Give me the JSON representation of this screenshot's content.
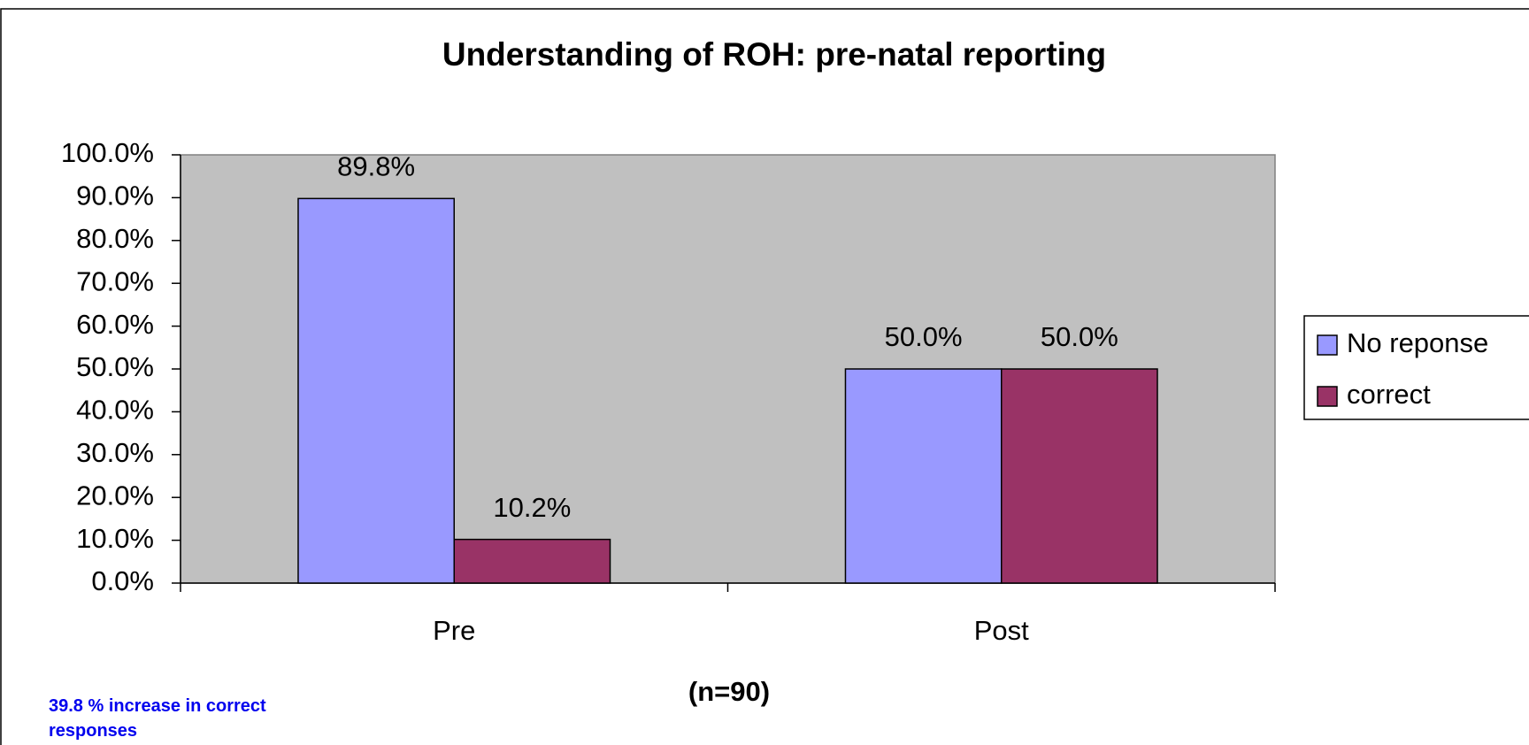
{
  "chart_data": {
    "type": "bar",
    "title": "Understanding of ROH: pre-natal reporting",
    "x_label": "(n=90)",
    "annotation": "39.8 % increase in correct responses",
    "categories": [
      "Pre",
      "Post"
    ],
    "series": [
      {
        "name": "No reponse",
        "color": "#9999ff",
        "values": [
          89.8,
          50.0
        ],
        "value_labels": [
          "89.8%",
          "50.0%"
        ]
      },
      {
        "name": "correct",
        "color": "#993366",
        "values": [
          10.2,
          50.0
        ],
        "value_labels": [
          "10.2%",
          "50.0%"
        ]
      }
    ],
    "ylim": [
      0,
      100
    ],
    "yticks": [
      {
        "value": 0,
        "label": "0.0%"
      },
      {
        "value": 10,
        "label": "10.0%"
      },
      {
        "value": 20,
        "label": "20.0%"
      },
      {
        "value": 30,
        "label": "30.0%"
      },
      {
        "value": 40,
        "label": "40.0%"
      },
      {
        "value": 50,
        "label": "50.0%"
      },
      {
        "value": 60,
        "label": "60.0%"
      },
      {
        "value": 70,
        "label": "70.0%"
      },
      {
        "value": 80,
        "label": "80.0%"
      },
      {
        "value": 90,
        "label": "90.0%"
      },
      {
        "value": 100,
        "label": "100.0%"
      }
    ],
    "grid": false,
    "plot_background": "#c0c0c0",
    "legend": "right"
  }
}
